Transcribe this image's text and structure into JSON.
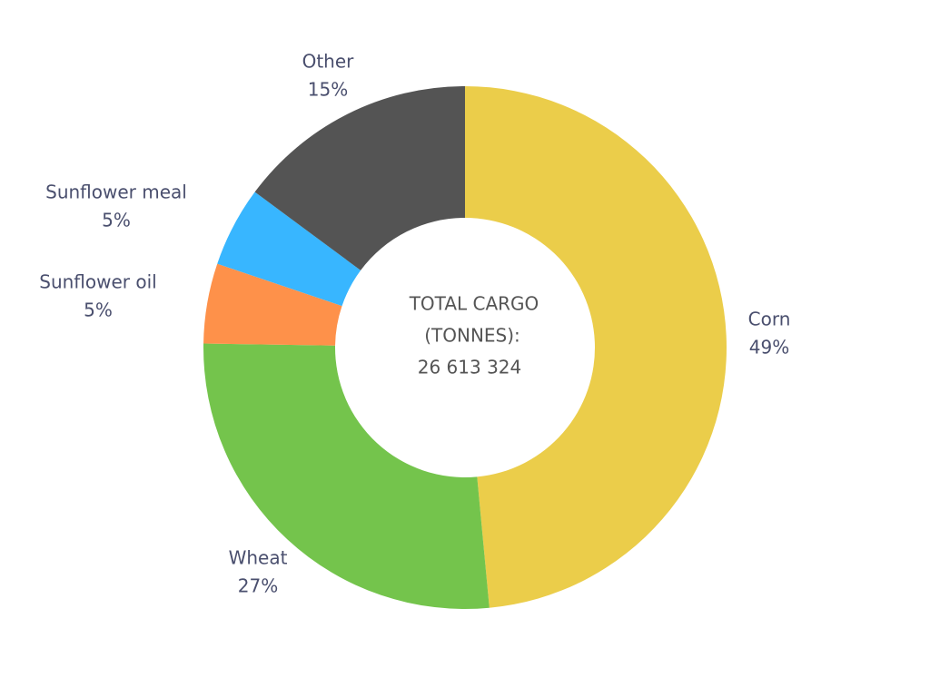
{
  "chart_data": {
    "type": "donut",
    "categories": [
      "Corn",
      "Wheat",
      "Sunflower oil",
      "Sunflower meal",
      "Other"
    ],
    "values": [
      49,
      27,
      5,
      5,
      15
    ],
    "value_labels": [
      "49%",
      "27%",
      "5%",
      "5%",
      "15%"
    ],
    "colors": [
      "#ebcd4a",
      "#74c44c",
      "#fe914a",
      "#38b6ff",
      "#545454"
    ],
    "center_title": [
      "TOTAL CARGO",
      "(TONNES):"
    ],
    "center_value": "26 613 324"
  }
}
